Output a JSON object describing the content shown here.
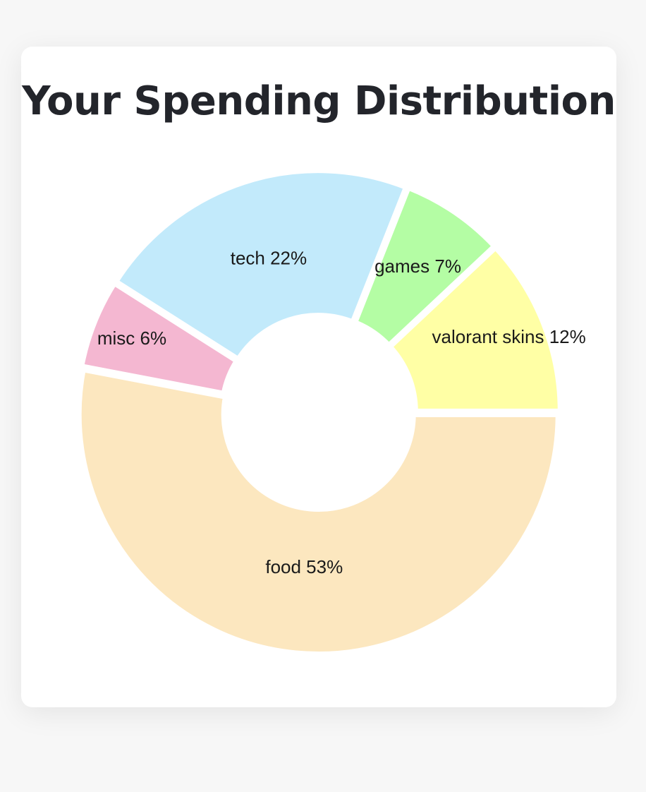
{
  "chart_data": {
    "type": "pie",
    "title": "Your Spending Distribution",
    "donut": true,
    "slices": [
      {
        "label": "valorant skins",
        "value": 12,
        "display": "valorant skins 12%",
        "color": "#ffffa5"
      },
      {
        "label": "games",
        "value": 7,
        "display": "games 7%",
        "color": "#b4fda4"
      },
      {
        "label": "tech",
        "value": 22,
        "display": "tech 22%",
        "color": "#c2eafb"
      },
      {
        "label": "misc",
        "value": 6,
        "display": "misc 6%",
        "color": "#f4b7d1"
      },
      {
        "label": "food",
        "value": 53,
        "display": "food 53%",
        "color": "#fce7bf"
      }
    ]
  }
}
